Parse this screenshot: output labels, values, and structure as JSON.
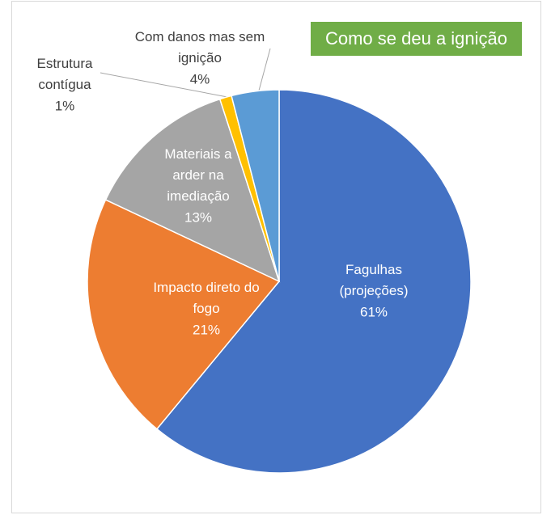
{
  "chart_data": {
    "type": "pie",
    "title": "Como se deu a ignição",
    "categories": [
      "Fagulhas (projeções)",
      "Impacto direto do fogo",
      "Materiais a arder na imediação",
      "Estrutura contígua",
      "Com danos mas sem ignição"
    ],
    "values": [
      61,
      21,
      13,
      1,
      4
    ],
    "value_labels": [
      "61%",
      "21%",
      "13%",
      "1%",
      "4%"
    ],
    "colors": [
      "#4472c4",
      "#ed7d31",
      "#a5a5a5",
      "#ffc000",
      "#5b9bd5"
    ]
  }
}
